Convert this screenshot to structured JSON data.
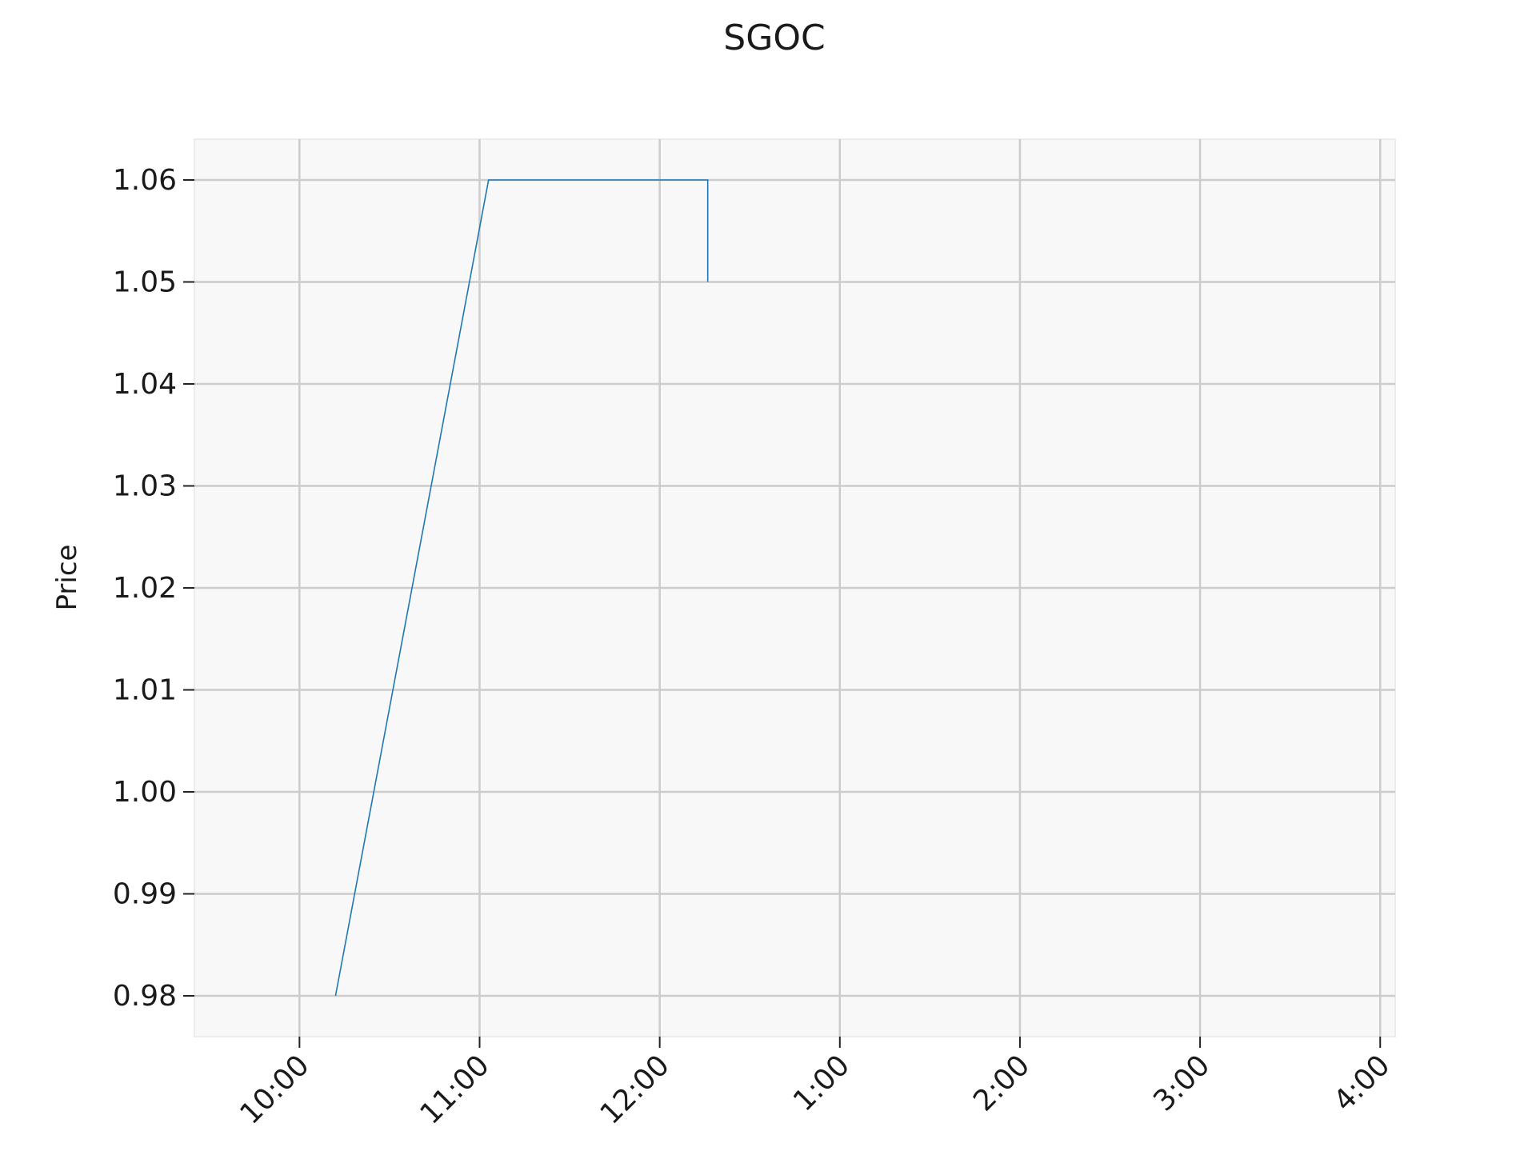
{
  "chart_data": {
    "type": "line",
    "title": "SGOC",
    "xlabel": "",
    "ylabel": "Price",
    "x_ticks": [
      "10:00",
      "11:00",
      "12:00",
      "1:00",
      "2:00",
      "3:00",
      "4:00"
    ],
    "y_ticks": [
      0.98,
      0.99,
      1.0,
      1.01,
      1.02,
      1.03,
      1.04,
      1.05,
      1.06
    ],
    "xlim": [
      "9:25",
      "4:05"
    ],
    "ylim": [
      0.976,
      1.064
    ],
    "grid": true,
    "series": [
      {
        "x": [
          "10:12",
          "11:03",
          "12:16",
          "12:16"
        ],
        "y": [
          0.98,
          1.06,
          1.06,
          1.05
        ]
      }
    ],
    "colors": {
      "line": "#1f77b4",
      "grid": "#cccccc",
      "plot_background": "#f8f8f8",
      "frame": "#ececec"
    }
  }
}
